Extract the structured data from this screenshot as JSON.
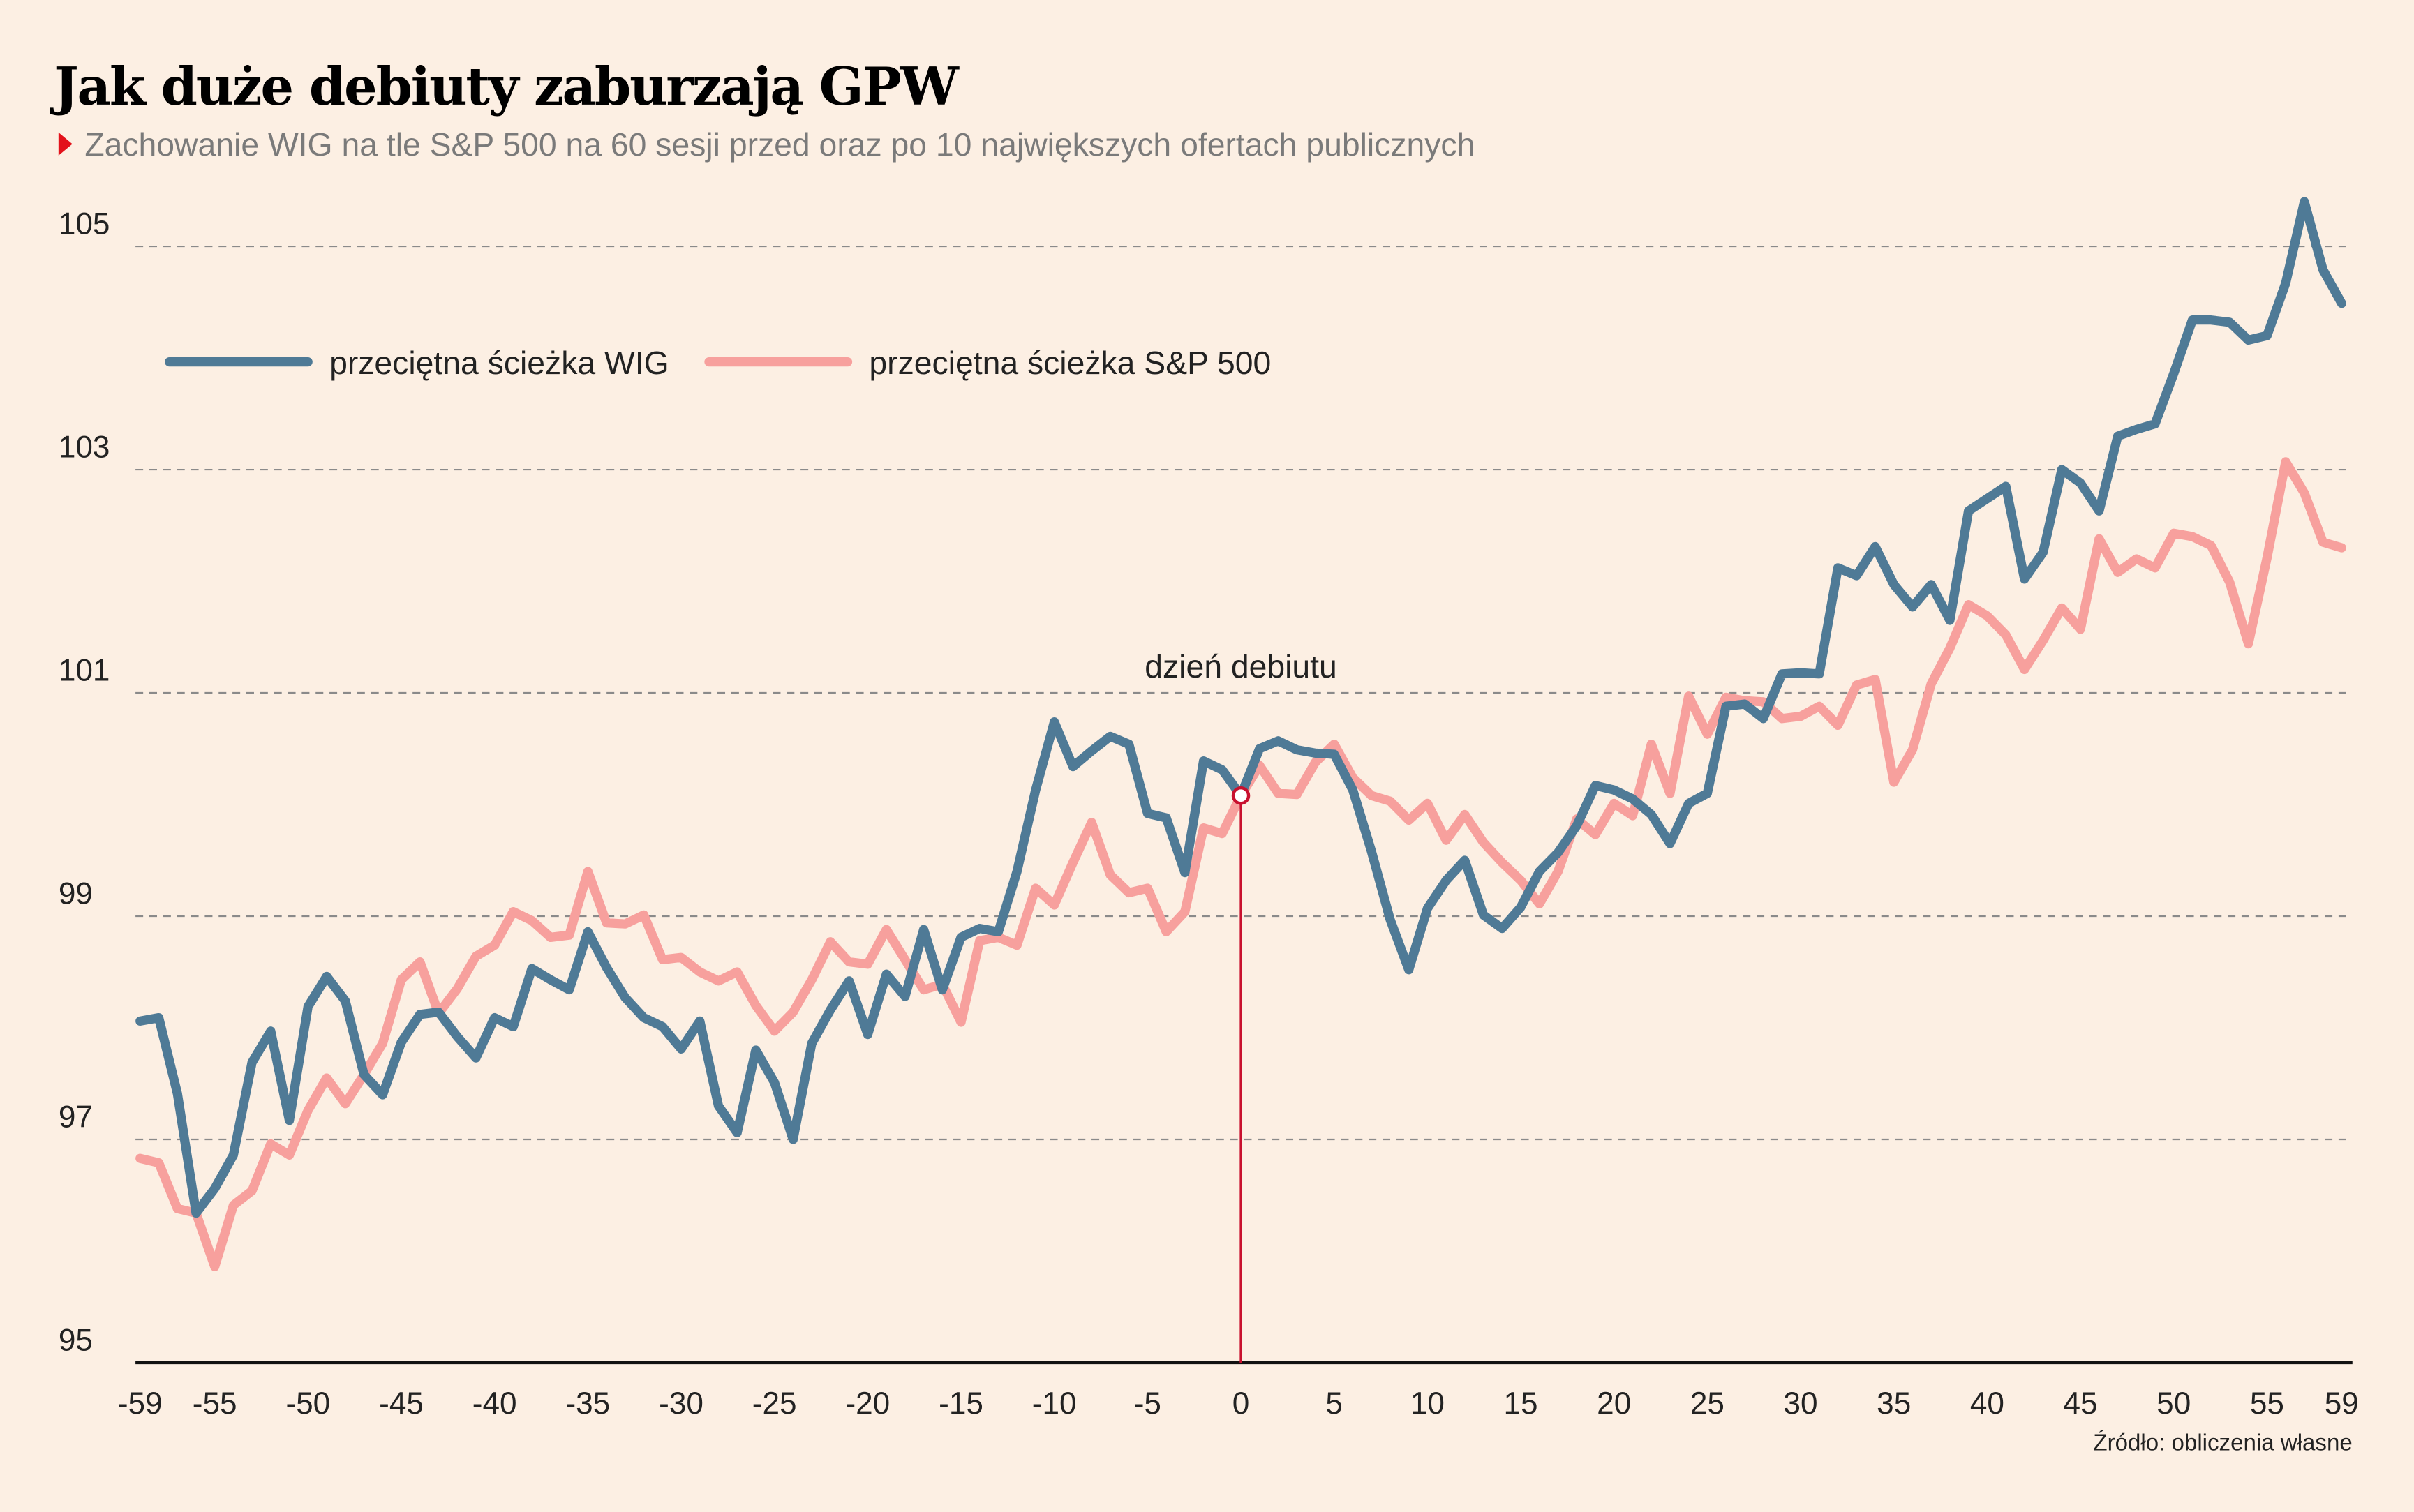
{
  "chart_data": {
    "type": "line",
    "title": "Jak duże debiuty zaburzają GPW",
    "subtitle": "Zachowanie WIG na tle S&P 500 na 60 sesji przed oraz po 10 największych ofertach publicznych",
    "source": "Źródło: obliczenia własne",
    "annotation": {
      "text": "dzień debiutu",
      "x": 0
    },
    "x": [
      -59,
      -58,
      -57,
      -56,
      -55,
      -54,
      -53,
      -52,
      -51,
      -50,
      -49,
      -48,
      -47,
      -46,
      -45,
      -44,
      -43,
      -42,
      -41,
      -40,
      -39,
      -38,
      -37,
      -36,
      -35,
      -34,
      -33,
      -32,
      -31,
      -30,
      -29,
      -28,
      -27,
      -26,
      -25,
      -24,
      -23,
      -22,
      -21,
      -20,
      -19,
      -18,
      -17,
      -16,
      -15,
      -14,
      -13,
      -12,
      -11,
      -10,
      -9,
      -8,
      -7,
      -6,
      -5,
      -4,
      -3,
      -2,
      -1,
      0,
      1,
      2,
      3,
      4,
      5,
      6,
      7,
      8,
      9,
      10,
      11,
      12,
      13,
      14,
      15,
      16,
      17,
      18,
      19,
      20,
      21,
      22,
      23,
      24,
      25,
      26,
      27,
      28,
      29,
      30,
      31,
      32,
      33,
      34,
      35,
      36,
      37,
      38,
      39,
      40,
      41,
      42,
      43,
      44,
      45,
      46,
      47,
      48,
      49,
      50,
      51,
      52,
      53,
      54,
      55,
      56,
      57,
      58,
      59
    ],
    "series": [
      {
        "name": "przeciętna ścieżka WIG",
        "color": "#4f7a96",
        "values": [
          98.06,
          98.09,
          97.41,
          96.34,
          96.56,
          96.86,
          97.69,
          97.97,
          97.17,
          98.19,
          98.46,
          98.24,
          97.58,
          97.4,
          97.87,
          98.12,
          98.14,
          97.92,
          97.73,
          98.09,
          98.01,
          98.53,
          98.43,
          98.34,
          98.86,
          98.54,
          98.27,
          98.09,
          98.01,
          97.81,
          98.06,
          97.3,
          97.06,
          97.8,
          97.51,
          97.0,
          97.86,
          98.16,
          98.42,
          97.94,
          98.48,
          98.28,
          98.88,
          98.34,
          98.81,
          98.89,
          98.86,
          99.4,
          100.13,
          100.74,
          100.34,
          100.48,
          100.61,
          100.54,
          99.92,
          99.88,
          99.39,
          100.39,
          100.31,
          100.08,
          100.5,
          100.57,
          100.49,
          100.46,
          100.45,
          100.13,
          99.58,
          98.97,
          98.52,
          99.07,
          99.32,
          99.5,
          99.01,
          98.89,
          99.08,
          99.4,
          99.57,
          99.81,
          100.17,
          100.13,
          100.05,
          99.91,
          99.65,
          100.01,
          100.1,
          100.88,
          100.9,
          100.77,
          101.17,
          101.18,
          101.17,
          102.12,
          102.05,
          102.31,
          101.97,
          101.77,
          101.97,
          101.65,
          102.63,
          102.74,
          102.85,
          102.02,
          102.26,
          103.0,
          102.88,
          102.63,
          103.3,
          103.36,
          103.41,
          103.86,
          104.34,
          104.34,
          104.32,
          104.16,
          104.2,
          104.67,
          105.4,
          104.79,
          104.49
        ]
      },
      {
        "name": "przeciętna ścieżka S&P 500",
        "color": "#f7a09d",
        "values": [
          96.83,
          96.79,
          96.38,
          96.34,
          95.86,
          96.41,
          96.54,
          96.96,
          96.86,
          97.26,
          97.55,
          97.32,
          97.58,
          97.86,
          98.43,
          98.59,
          98.13,
          98.35,
          98.64,
          98.74,
          99.04,
          98.96,
          98.81,
          98.83,
          99.4,
          98.94,
          98.93,
          99.01,
          98.61,
          98.63,
          98.5,
          98.42,
          98.5,
          98.2,
          97.97,
          98.14,
          98.43,
          98.77,
          98.59,
          98.57,
          98.88,
          98.61,
          98.34,
          98.39,
          98.05,
          98.78,
          98.81,
          98.74,
          99.25,
          99.1,
          99.48,
          99.84,
          99.37,
          99.21,
          99.25,
          98.86,
          99.04,
          99.79,
          99.74,
          100.08,
          100.35,
          100.1,
          100.09,
          100.38,
          100.54,
          100.24,
          100.08,
          100.03,
          99.86,
          100.01,
          99.68,
          99.91,
          99.66,
          99.48,
          99.32,
          99.11,
          99.4,
          99.87,
          99.73,
          100.01,
          99.9,
          100.54,
          100.1,
          100.97,
          100.63,
          100.96,
          100.93,
          100.92,
          100.77,
          100.79,
          100.88,
          100.71,
          101.07,
          101.12,
          100.2,
          100.49,
          101.08,
          101.4,
          101.79,
          101.69,
          101.52,
          101.21,
          101.47,
          101.76,
          101.57,
          102.38,
          102.08,
          102.2,
          102.12,
          102.43,
          102.4,
          102.32,
          101.99,
          101.44,
          102.21,
          103.07,
          102.79,
          102.35,
          102.3
        ]
      }
    ],
    "xlim": [
      -59,
      59
    ],
    "xticks": [
      -59,
      -55,
      -50,
      -45,
      -40,
      -35,
      -30,
      -25,
      -20,
      -15,
      -10,
      -5,
      0,
      5,
      10,
      15,
      20,
      25,
      30,
      35,
      40,
      45,
      50,
      55,
      59
    ],
    "ylim": [
      95,
      105.6
    ],
    "yticks": [
      95,
      97,
      99,
      101,
      103,
      105
    ],
    "grid": true,
    "legend": "top-left",
    "annotation_color": "#c8102e"
  }
}
